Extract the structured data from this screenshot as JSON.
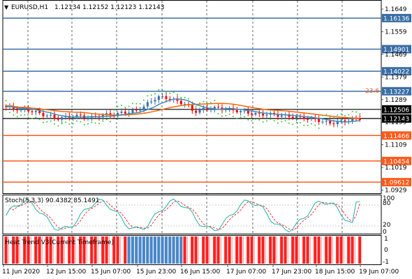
{
  "header": {
    "symbol": "EURUSD,H1",
    "ohlc": "1.12134 1.12152 1.12123 1.12143"
  },
  "price_axis": {
    "ticks": [
      "1.1649",
      "1.1559",
      "1.1469",
      "1.1379",
      "1.1289",
      "1.1199",
      "1.1109",
      "1.1019",
      "1.0929"
    ],
    "ticks_mid": [
      "1.16495",
      "1.15595",
      "1.14695",
      "1.13795",
      "1.12895",
      "1.11995",
      "1.11095",
      "1.10195",
      "1.09295"
    ]
  },
  "levels": [
    {
      "label": "1.16136",
      "value": 1.16136,
      "color": "#3a6ea5"
    },
    {
      "label": "1.14901",
      "value": 1.14901,
      "color": "#3a6ea5"
    },
    {
      "label": "1.14022",
      "value": 1.14022,
      "color": "#3a6ea5"
    },
    {
      "label": "1.13227",
      "value": 1.13227,
      "color": "#3a6ea5"
    },
    {
      "label": "1.12506",
      "value": 1.12506,
      "color": "#000000"
    },
    {
      "label": "1.12143",
      "value": 1.12143,
      "color": "#000000"
    },
    {
      "label": "1.11466",
      "value": 1.11466,
      "color": "#ff5a1a"
    },
    {
      "label": "1.10454",
      "value": 1.10454,
      "color": "#ff5a1a"
    },
    {
      "label": "1.09612",
      "value": 1.09612,
      "color": "#ff5a1a"
    }
  ],
  "price_tick_labels": [
    "1.1649",
    "1.1559",
    "1.1469",
    "1.1379",
    "1.1289",
    "1.1199",
    "1.1109",
    "1.1019",
    "1.0929"
  ],
  "fib_label": "23.6",
  "stoch": {
    "title": "Stoch(5,3,3) 90.4382 85.1491",
    "levels": [
      "100",
      "80",
      "20",
      "0"
    ]
  },
  "trend": {
    "title": "Heat Trend V3(Current Timeframe)",
    "levels": [
      "1",
      "0",
      "-1"
    ]
  },
  "time_axis": [
    "11 Jun 2020",
    "12 Jun 15:00",
    "15 Jun 07:00",
    "15 Jun 23:00",
    "16 Jun 15:00",
    "17 Jun 07:00",
    "17 Jun 23:00",
    "18 Jun 15:00",
    "19 Jun 07:00"
  ],
  "colors": {
    "bull": "#3a6ea5",
    "bear": "#ff0000",
    "ma_fast": "#3a8fbf",
    "ma_slow": "#ff6600",
    "psar": "#33cc33",
    "stoch_main": "#20b2aa",
    "stoch_signal": "#ff0000"
  },
  "chart_data": {
    "type": "line",
    "title": "EURUSD,H1",
    "close": [
      1.126,
      1.1255,
      1.125,
      1.1248,
      1.124,
      1.123,
      1.1225,
      1.1215,
      1.1218,
      1.1222,
      1.1225,
      1.122,
      1.1218,
      1.1226,
      1.123,
      1.1228,
      1.1238,
      1.124,
      1.1246,
      1.126,
      1.1282,
      1.13,
      1.1298,
      1.129,
      1.128,
      1.127,
      1.124,
      1.125,
      1.1255,
      1.1256,
      1.1254,
      1.125,
      1.1245,
      1.124,
      1.1235,
      1.123,
      1.1232,
      1.123,
      1.1226,
      1.1224,
      1.122,
      1.1218,
      1.1214,
      1.121,
      1.12,
      1.1196,
      1.12,
      1.1205,
      1.1212,
      1.1214
    ],
    "ylim": [
      1.092,
      1.168
    ]
  }
}
